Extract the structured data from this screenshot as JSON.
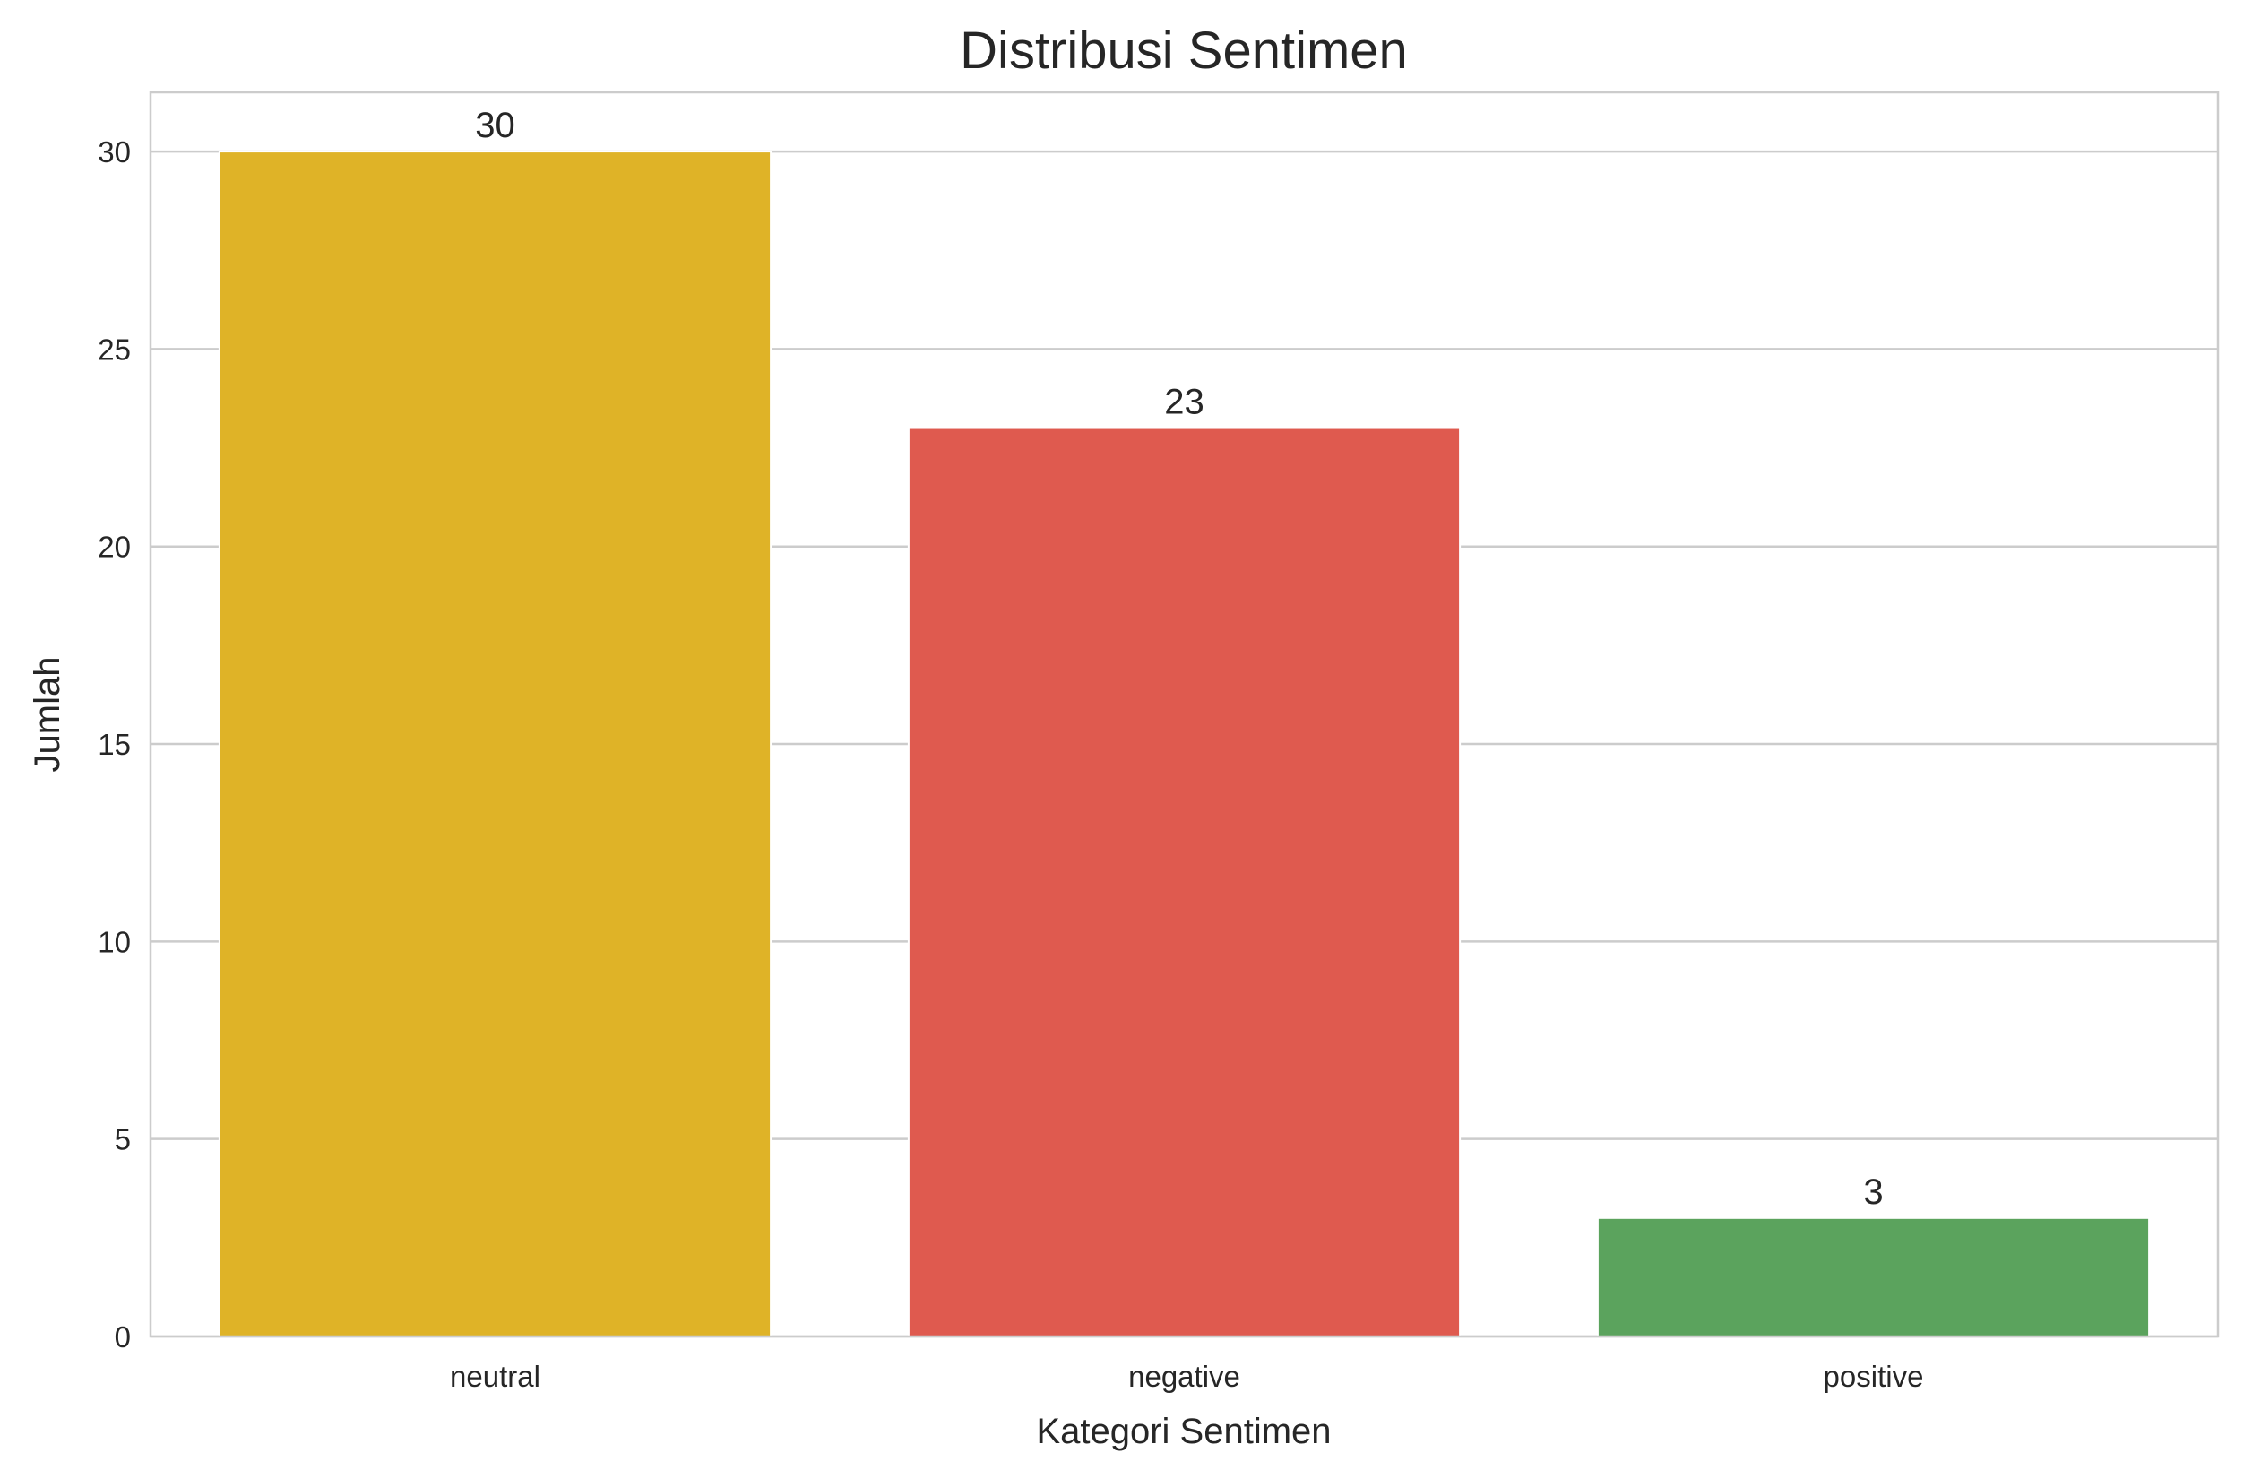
{
  "chart_data": {
    "type": "bar",
    "title": "Distribusi Sentimen",
    "xlabel": "Kategori Sentimen",
    "ylabel": "Jumlah",
    "categories": [
      "neutral",
      "negative",
      "positive"
    ],
    "values": [
      30,
      23,
      3
    ],
    "colors": [
      "#dfb327",
      "#df5a4f",
      "#5ba35d"
    ],
    "ylim": [
      0,
      31.5
    ],
    "yticks": [
      0,
      5,
      10,
      15,
      20,
      25,
      30
    ],
    "grid": true
  }
}
